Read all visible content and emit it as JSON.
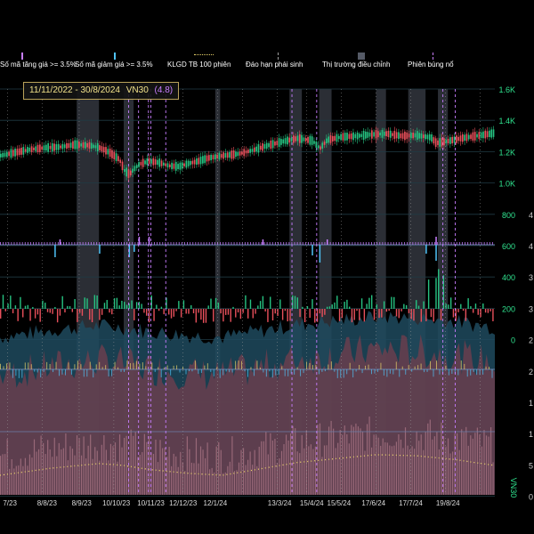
{
  "legend": [
    {
      "label": "Số mã tăng giá >= 3.5%",
      "color": "#c77dff",
      "style": "bar"
    },
    {
      "label": "Số mã giảm giá >= 3.5%",
      "color": "#4fc3f7",
      "style": "bar"
    },
    {
      "label": "KLGD TB 100 phiên",
      "color": "#e8d36a",
      "style": "dotted"
    },
    {
      "label": "Đáo hạn phái sinh",
      "color": "#9e9e9e",
      "style": "dashed"
    },
    {
      "label": "Thị trường điều chỉnh",
      "color": "#555a66",
      "style": "block"
    },
    {
      "label": "Phiên bùng nổ",
      "color": "#c77dff",
      "style": "dashed"
    }
  ],
  "range": {
    "dates": "11/11/2022 - 30/8/2024",
    "symbol": "VN30",
    "change": "(4.8)"
  },
  "colors": {
    "up": "#26c281",
    "down": "#e8505b",
    "grid": "#1f3a44",
    "axis_text": "#2fe38f",
    "breadth_up": "#c77dff",
    "breadth_down": "#4fc3f7",
    "area_teal": "#1f4a5e",
    "area_pink": "#6e3f4e",
    "avg_line": "#e8d36a"
  },
  "chart_data": {
    "type": "line",
    "title": "",
    "symbol": "VN30",
    "x_tick_labels": [
      "7/23",
      "8/8/23",
      "8/9/23",
      "10/10/23",
      "10/11/23",
      "12/12/23",
      "12/1/24",
      "13/3/24",
      "15/4/24",
      "15/5/24",
      "17/6/24",
      "17/7/24",
      "19/8/24"
    ],
    "x_tick_pos": [
      0.02,
      0.095,
      0.165,
      0.235,
      0.305,
      0.37,
      0.435,
      0.565,
      0.63,
      0.685,
      0.755,
      0.83,
      0.905
    ],
    "left_axis_labels": [
      "1.6K",
      "1.4K",
      "1.2K",
      "1.0K",
      "800",
      "600",
      "400",
      "200",
      "0"
    ],
    "right_axis_labels": [
      "",
      "",
      "",
      "",
      "4",
      "4",
      "3",
      "3",
      "2",
      "2",
      "1",
      "1",
      "5",
      "0"
    ],
    "ylim": [
      0,
      1600
    ],
    "index_series": {
      "name": "VN30",
      "x": [
        0.0,
        0.03,
        0.06,
        0.09,
        0.12,
        0.15,
        0.18,
        0.2,
        0.22,
        0.24,
        0.25,
        0.26,
        0.27,
        0.28,
        0.3,
        0.32,
        0.34,
        0.36,
        0.38,
        0.4,
        0.42,
        0.45,
        0.48,
        0.51,
        0.54,
        0.57,
        0.6,
        0.63,
        0.645,
        0.66,
        0.69,
        0.72,
        0.75,
        0.78,
        0.81,
        0.84,
        0.87,
        0.88,
        0.9,
        0.93,
        0.96,
        1.0
      ],
      "values": [
        1175,
        1195,
        1215,
        1225,
        1230,
        1245,
        1240,
        1225,
        1195,
        1150,
        1080,
        1055,
        1090,
        1120,
        1140,
        1130,
        1110,
        1105,
        1125,
        1140,
        1160,
        1175,
        1185,
        1210,
        1240,
        1265,
        1285,
        1270,
        1220,
        1275,
        1295,
        1300,
        1310,
        1315,
        1300,
        1305,
        1290,
        1255,
        1265,
        1285,
        1300,
        1320
      ]
    },
    "breadth_up_series": {
      "name": "Số mã tăng giá >= 3.5%",
      "spikes": [
        [
          0.12,
          2
        ],
        [
          0.28,
          3
        ],
        [
          0.3,
          3
        ],
        [
          0.53,
          2
        ],
        [
          0.66,
          2
        ],
        [
          0.88,
          3
        ]
      ]
    },
    "breadth_down_series": {
      "name": "Số mã giảm giá >= 3.5%",
      "spikes": [
        [
          0.11,
          14
        ],
        [
          0.2,
          10
        ],
        [
          0.26,
          14
        ],
        [
          0.27,
          8
        ],
        [
          0.63,
          12
        ],
        [
          0.645,
          20
        ],
        [
          0.86,
          10
        ],
        [
          0.88,
          18
        ]
      ]
    },
    "corrections": [
      [
        0.155,
        0.2
      ],
      [
        0.25,
        0.27
      ],
      [
        0.435,
        0.445
      ],
      [
        0.585,
        0.61
      ],
      [
        0.645,
        0.67
      ],
      [
        0.76,
        0.78
      ],
      [
        0.825,
        0.86
      ],
      [
        0.885,
        0.905
      ]
    ],
    "breakouts": [
      0.26,
      0.28,
      0.3,
      0.305,
      0.335,
      0.59,
      0.64,
      0.895,
      0.92
    ],
    "derivative_expiry": [
      0.015,
      0.085,
      0.16,
      0.23,
      0.3,
      0.37,
      0.44,
      0.49,
      0.56,
      0.62,
      0.69,
      0.76,
      0.83,
      0.9,
      0.97
    ],
    "avg_volume_100": {
      "name": "KLGD TB 100 phiên",
      "x": [
        0.0,
        0.1,
        0.2,
        0.25,
        0.3,
        0.38,
        0.45,
        0.52,
        0.6,
        0.68,
        0.76,
        0.84,
        0.92,
        1.0
      ],
      "values": [
        20,
        27,
        32,
        30,
        26,
        22,
        20,
        26,
        33,
        37,
        41,
        40,
        36,
        30
      ]
    }
  }
}
